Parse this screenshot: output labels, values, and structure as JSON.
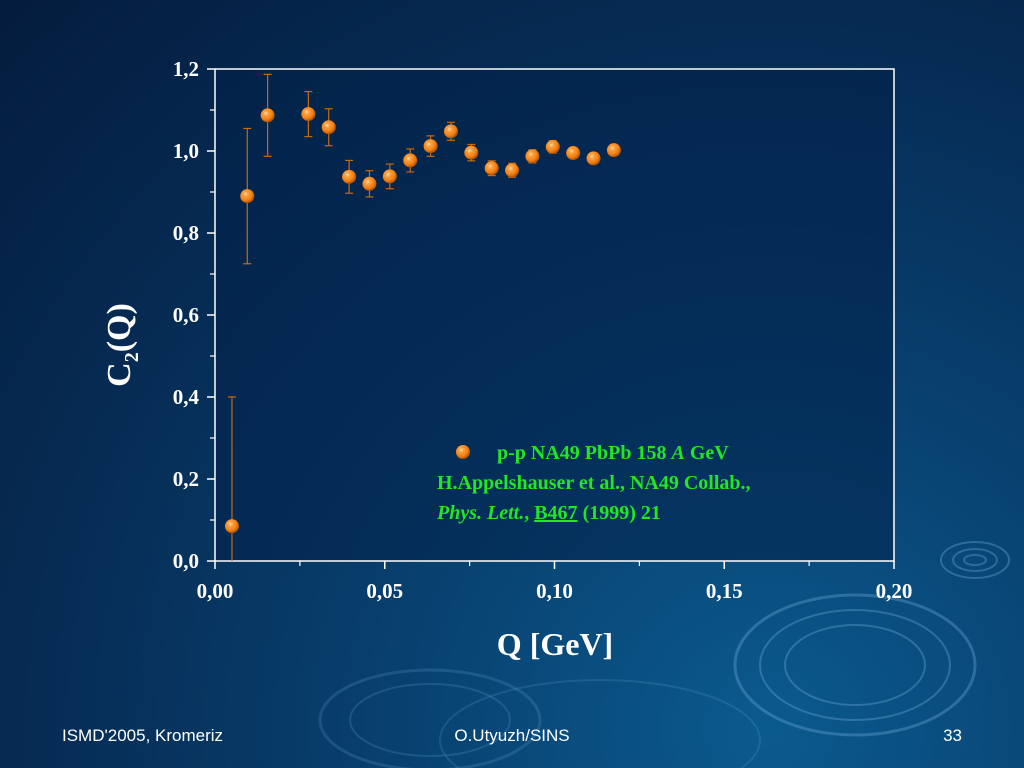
{
  "chart_data": {
    "type": "scatter",
    "xlabel": "Q   [GeV]",
    "ylabel_base": "C",
    "ylabel_sub": "2",
    "ylabel_tail": "(Q)",
    "xlim": [
      0.0,
      0.2
    ],
    "ylim": [
      0.0,
      1.2
    ],
    "x_ticks": [
      {
        "value": 0.0,
        "label": "0,00"
      },
      {
        "value": 0.05,
        "label": "0,05"
      },
      {
        "value": 0.1,
        "label": "0,10"
      },
      {
        "value": 0.15,
        "label": "0,15"
      },
      {
        "value": 0.2,
        "label": "0,20"
      }
    ],
    "y_ticks": [
      {
        "value": 0.0,
        "label": "0,0"
      },
      {
        "value": 0.2,
        "label": "0,2"
      },
      {
        "value": 0.4,
        "label": "0,4"
      },
      {
        "value": 0.6,
        "label": "0,6"
      },
      {
        "value": 0.8,
        "label": "0,8"
      },
      {
        "value": 1.0,
        "label": "1,0"
      },
      {
        "value": 1.2,
        "label": "1,2"
      }
    ],
    "grid": false,
    "legend_position": "bottom-right",
    "marker_color": "#f07f10",
    "errorbar_color": "#c86a10",
    "series": [
      {
        "name": "p-p NA49 PbPb 158 A GeV",
        "points": [
          {
            "x": 0.005,
            "y": 0.085,
            "err": 0.315
          },
          {
            "x": 0.0095,
            "y": 0.89,
            "err": 0.165
          },
          {
            "x": 0.0155,
            "y": 1.087,
            "err": 0.1
          },
          {
            "x": 0.0275,
            "y": 1.09,
            "err": 0.055
          },
          {
            "x": 0.0335,
            "y": 1.058,
            "err": 0.045
          },
          {
            "x": 0.0395,
            "y": 0.937,
            "err": 0.04
          },
          {
            "x": 0.0455,
            "y": 0.92,
            "err": 0.032
          },
          {
            "x": 0.0515,
            "y": 0.938,
            "err": 0.03
          },
          {
            "x": 0.0575,
            "y": 0.977,
            "err": 0.028
          },
          {
            "x": 0.0635,
            "y": 1.012,
            "err": 0.025
          },
          {
            "x": 0.0695,
            "y": 1.048,
            "err": 0.022
          },
          {
            "x": 0.0755,
            "y": 0.996,
            "err": 0.02
          },
          {
            "x": 0.0815,
            "y": 0.958,
            "err": 0.018
          },
          {
            "x": 0.0875,
            "y": 0.953,
            "err": 0.017
          },
          {
            "x": 0.0935,
            "y": 0.987,
            "err": 0.016
          },
          {
            "x": 0.0995,
            "y": 1.01,
            "err": 0.015
          },
          {
            "x": 0.1055,
            "y": 0.995,
            "err": 0.013
          },
          {
            "x": 0.1115,
            "y": 0.982,
            "err": 0.012
          },
          {
            "x": 0.1175,
            "y": 1.002,
            "err": 0.01
          }
        ]
      }
    ],
    "legend": {
      "entry_text": "p-p NA49 PbPb 158 ",
      "entry_italic": "A",
      "entry_tail": " GeV",
      "line2": "H.Appelshauser et al., NA49 Collab.,",
      "journal_italic": "Phys. Lett.",
      "journal_sep": ", ",
      "volume_underlined": "B467",
      "year_pages": " (1999) 21",
      "text_color": "#22e622"
    }
  },
  "footer": {
    "left": "ISMD'2005, Kromeriz",
    "center": "O.Utyuzh/SINS",
    "right": "33"
  },
  "colors": {
    "background": "#062a52",
    "axis": "#ffffff",
    "plot_area": "#022049"
  }
}
